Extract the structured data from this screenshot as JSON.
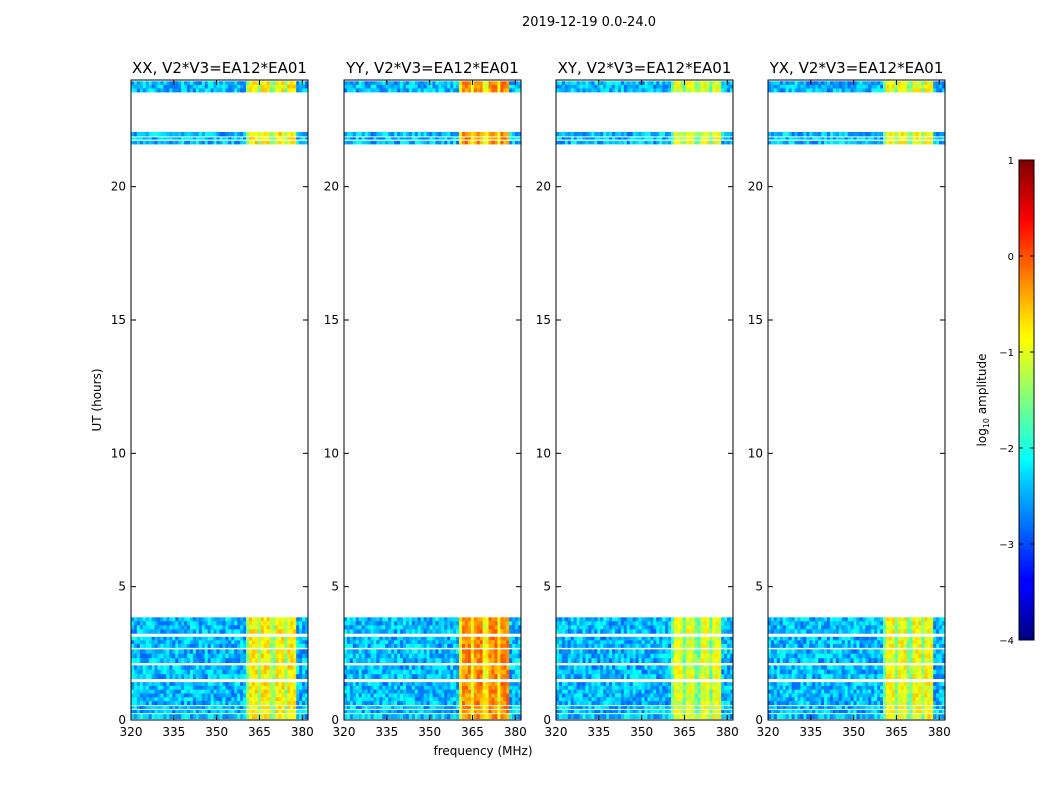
{
  "chart_data": {
    "type": "heatmap",
    "suptitle": "2019-12-19 0.0-24.0",
    "xlabel": "frequency (MHz)",
    "ylabel": "UT (hours)",
    "xlim": [
      320,
      382
    ],
    "ylim": [
      0,
      24
    ],
    "x_ticks": [
      320,
      335,
      350,
      365,
      380
    ],
    "y_ticks": [
      0,
      5,
      10,
      15,
      20
    ],
    "colorbar": {
      "label": "log10 amplitude",
      "label_main": "log",
      "label_sub": "10",
      "label_rest": " amplitude",
      "range": [
        -4,
        1
      ],
      "ticks": [
        1,
        0,
        -1,
        -2,
        -3,
        -4
      ],
      "tick_labels": [
        "1",
        "0",
        "−1",
        "−2",
        "−3",
        "−4"
      ]
    },
    "time_blocks_hours": [
      [
        0.05,
        0.22
      ],
      [
        0.27,
        0.38
      ],
      [
        0.43,
        0.52
      ],
      [
        0.57,
        1.42
      ],
      [
        1.55,
        2.05
      ],
      [
        2.15,
        2.65
      ],
      [
        2.72,
        3.12
      ],
      [
        3.25,
        3.85
      ],
      [
        21.6,
        21.72
      ],
      [
        21.78,
        21.85
      ],
      [
        21.9,
        22.05
      ],
      [
        23.55,
        23.95
      ]
    ],
    "bright_band_mhz": [
      360,
      378
    ],
    "panels": [
      {
        "title": "XX, V2*V3=EA12*EA01",
        "bright_level": -0.8
      },
      {
        "title": "YY, V2*V3=EA12*EA01",
        "bright_level": -0.3
      },
      {
        "title": "XY, V2*V3=EA12*EA01",
        "bright_level": -1.0
      },
      {
        "title": "YX, V2*V3=EA12*EA01",
        "bright_level": -0.9
      }
    ]
  }
}
